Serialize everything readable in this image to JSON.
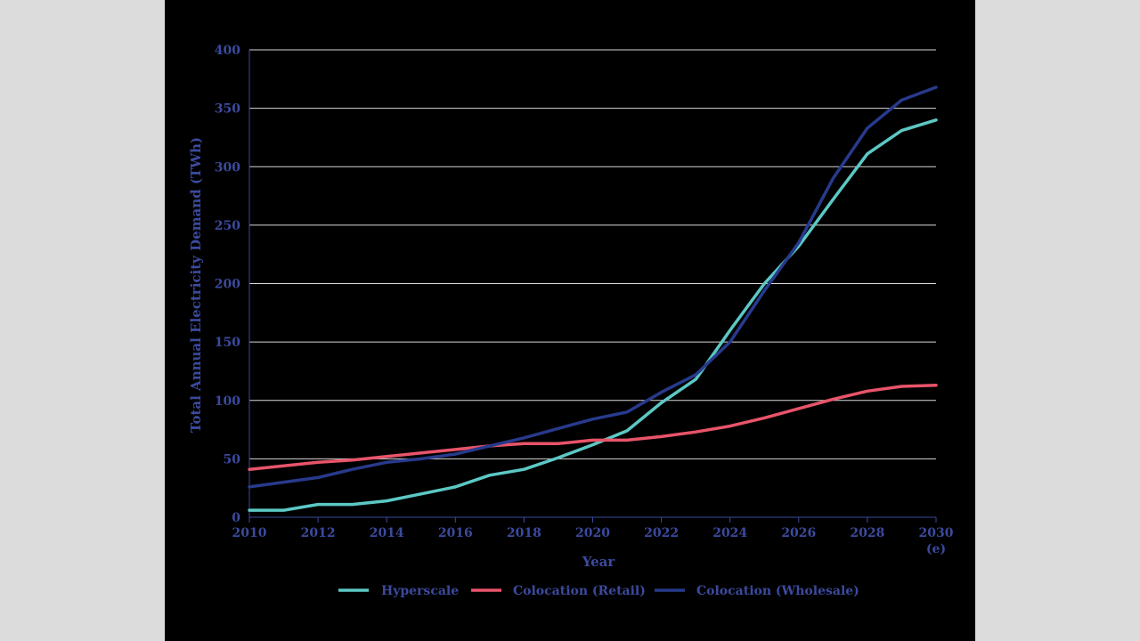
{
  "chart_data": {
    "type": "line",
    "title": "",
    "xlabel": "Year",
    "ylabel": "Total Annual Electricity Demand (TWh)",
    "x_ticks": [
      {
        "value": 2010,
        "label": "2010"
      },
      {
        "value": 2012,
        "label": "2012"
      },
      {
        "value": 2014,
        "label": "2014"
      },
      {
        "value": 2016,
        "label": "2016"
      },
      {
        "value": 2018,
        "label": "2018"
      },
      {
        "value": 2020,
        "label": "2020"
      },
      {
        "value": 2022,
        "label": "2022"
      },
      {
        "value": 2024,
        "label": "2024"
      },
      {
        "value": 2026,
        "label": "2026"
      },
      {
        "value": 2028,
        "label": "2028"
      },
      {
        "value": 2030,
        "label": "2030",
        "sublabel": "(e)"
      }
    ],
    "xlim": [
      2010,
      2030
    ],
    "y_ticks": [
      0,
      50,
      100,
      150,
      200,
      250,
      300,
      350,
      400
    ],
    "ylim": [
      0,
      400
    ],
    "grid": true,
    "legend_position": "bottom",
    "series": [
      {
        "name": "Hyperscale",
        "color": "#5cc8c4",
        "x": [
          2010,
          2011,
          2012,
          2013,
          2014,
          2015,
          2016,
          2017,
          2018,
          2019,
          2020,
          2021,
          2022,
          2023,
          2024,
          2025,
          2026,
          2027,
          2028,
          2029,
          2030
        ],
        "values": [
          6,
          6,
          11,
          11,
          14,
          20,
          26,
          36,
          41,
          51,
          62,
          74,
          98,
          118,
          160,
          200,
          232,
          272,
          311,
          331,
          340
        ]
      },
      {
        "name": "Colocation (Retail)",
        "color": "#e8546a",
        "x": [
          2010,
          2011,
          2012,
          2013,
          2014,
          2015,
          2016,
          2017,
          2018,
          2019,
          2020,
          2021,
          2022,
          2023,
          2024,
          2025,
          2026,
          2027,
          2028,
          2029,
          2030
        ],
        "values": [
          41,
          44,
          47,
          49,
          52,
          55,
          58,
          61,
          63,
          63,
          66,
          66,
          69,
          73,
          78,
          85,
          93,
          101,
          108,
          112,
          113
        ]
      },
      {
        "name": "Colocation (Wholesale)",
        "color": "#283a8c",
        "x": [
          2010,
          2011,
          2012,
          2013,
          2014,
          2015,
          2016,
          2017,
          2018,
          2019,
          2020,
          2021,
          2022,
          2023,
          2024,
          2025,
          2026,
          2027,
          2028,
          2029,
          2030
        ],
        "values": [
          26,
          30,
          34,
          41,
          47,
          50,
          54,
          61,
          68,
          76,
          84,
          90,
          107,
          122,
          150,
          194,
          235,
          290,
          333,
          357,
          368
        ]
      }
    ]
  }
}
